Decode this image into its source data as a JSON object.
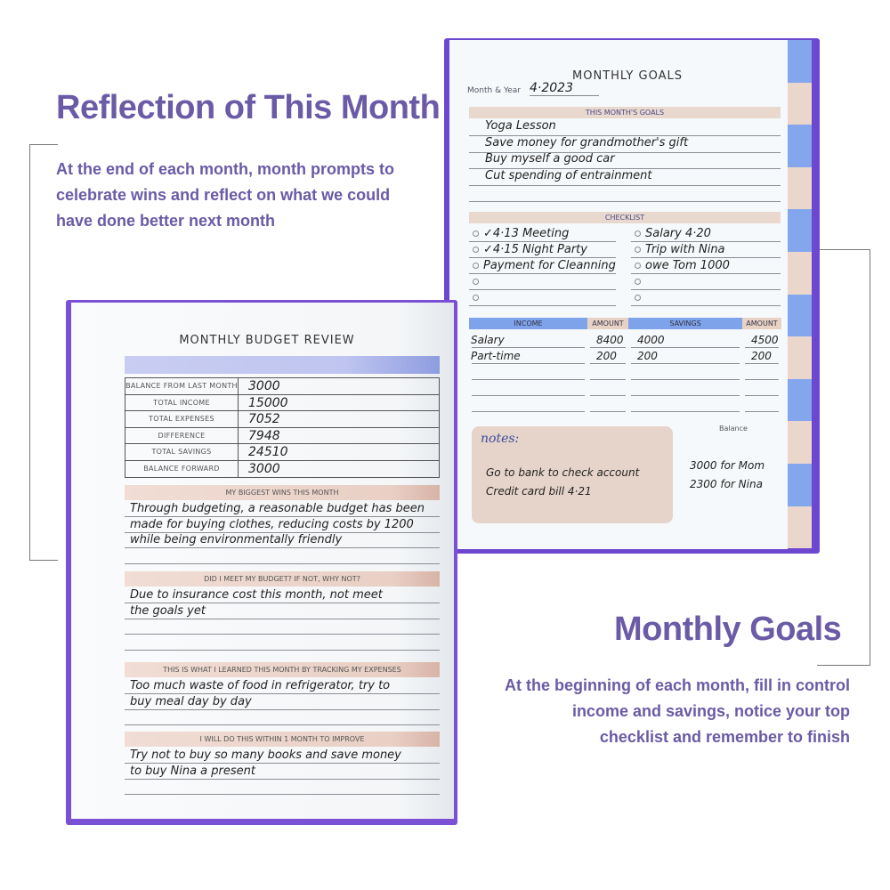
{
  "left_caption": {
    "title": "Reflection of This Month",
    "body": [
      "At the end of each month, month prompts to",
      "celebrate wins and reflect on what we could",
      "have done better next month"
    ]
  },
  "right_caption": {
    "title": "Monthly Goals",
    "body": [
      "At the beginning of each month, fill in control",
      "income and savings, notice your top",
      "checklist and remember to finish"
    ]
  },
  "colors": {
    "accent": "#6b5aa6",
    "cover": "#7a4fd6",
    "blue": "#7fa3ea",
    "peach": "#e8d2c6"
  },
  "goals_page": {
    "title": "MONTHLY GOALS",
    "month_label": "Month & Year",
    "month_value": "4·2023",
    "goals_header": "THIS MONTH'S GOALS",
    "goals": [
      "Yoga Lesson",
      "Save money for grandmother's gift",
      "Buy myself a good car",
      "Cut spending of entrainment"
    ],
    "checklist_header": "CHECKLIST",
    "checklist_left": [
      "✓4·13 Meeting",
      "✓4·15 Night Party",
      "Payment for Cleanning",
      "",
      ""
    ],
    "checklist_right": [
      "Salary 4·20",
      "Trip with Nina",
      "owe Tom 1000",
      "",
      ""
    ],
    "table_headers": [
      "INCOME",
      "AMOUNT",
      "SAVINGS",
      "AMOUNT"
    ],
    "table_rows": [
      [
        "Salary",
        "8400",
        "4000",
        "4500"
      ],
      [
        "Part-time",
        "200",
        "200",
        "200"
      ]
    ],
    "notes_label": "notes:",
    "notes": [
      "Go to bank to check account",
      "Credit card bill 4·21"
    ],
    "balance_label": "Balance",
    "balance": [
      "3000 for Mom",
      "2300 for Nina"
    ]
  },
  "budget_page": {
    "title": "MONTHLY BUDGET REVIEW",
    "rows": [
      [
        "BALANCE FROM LAST MONTH",
        "3000"
      ],
      [
        "TOTAL INCOME",
        "15000"
      ],
      [
        "TOTAL EXPENSES",
        "7052"
      ],
      [
        "DIFFERENCE",
        "7948"
      ],
      [
        "TOTAL SAVINGS",
        "24510"
      ],
      [
        "BALANCE FORWARD",
        "3000"
      ]
    ],
    "sections": [
      {
        "header": "MY BIGGEST WINS THIS MONTH",
        "lines": [
          "Through budgeting, a reasonable budget has been",
          "made for buying clothes, reducing costs by 1200",
          "while being environmentally friendly"
        ]
      },
      {
        "header": "DID I MEET MY BUDGET? IF NOT, WHY NOT?",
        "lines": [
          "Due to insurance cost this month, not meet",
          "the goals yet"
        ]
      },
      {
        "header": "THIS IS WHAT I LEARNED THIS MONTH BY TRACKING MY EXPENSES",
        "lines": [
          "Too much waste of food in refrigerator, try to",
          "buy meal day by day"
        ]
      },
      {
        "header": "I WILL DO THIS WITHIN 1 MONTH TO IMPROVE",
        "lines": [
          "Try not to buy so many books and save money",
          "to buy Nina a present"
        ]
      }
    ]
  }
}
